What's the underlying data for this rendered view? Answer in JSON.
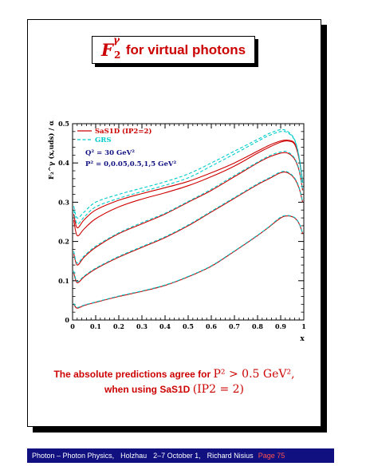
{
  "title": {
    "symbol": "F",
    "superscript": "γ",
    "subscript": "2",
    "text": "for virtual photons"
  },
  "chart_data": {
    "type": "line",
    "ylabel": "F₂^γ (x,uds) / α",
    "xlabel": "x",
    "xlim": [
      0,
      1
    ],
    "ylim": [
      0,
      0.5
    ],
    "x_ticks": [
      "0",
      "0.1",
      "0.2",
      "0.3",
      "0.4",
      "0.5",
      "0.6",
      "0.7",
      "0.8",
      "0.9",
      "1"
    ],
    "y_ticks": [
      "0",
      "0.1",
      "0.2",
      "0.3",
      "0.4",
      "0.5"
    ],
    "legend": {
      "position": "top-left",
      "entries": [
        {
          "label": "SaS1D (IP2=2)",
          "color": "#cc0000",
          "style": "solid"
        },
        {
          "label": "GRS",
          "color": "#00cccc",
          "style": "dashed"
        }
      ],
      "notes": [
        "Q² = 30 GeV²",
        "P² = 0,0.05,0.5,1,5 GeV²"
      ]
    },
    "x": [
      0.005,
      0.02,
      0.05,
      0.1,
      0.2,
      0.3,
      0.4,
      0.5,
      0.6,
      0.7,
      0.8,
      0.85,
      0.9,
      0.93,
      0.96,
      0.98,
      0.995
    ],
    "series": [
      {
        "name": "SaS1D (IP2=2)",
        "values": [
          0.27,
          0.235,
          0.255,
          0.28,
          0.305,
          0.322,
          0.337,
          0.353,
          0.375,
          0.4,
          0.43,
          0.445,
          0.456,
          0.458,
          0.45,
          0.41,
          0.35
        ]
      },
      {
        "name": "SaS1D (IP2=2)",
        "values": [
          0.255,
          0.215,
          0.232,
          0.258,
          0.288,
          0.308,
          0.324,
          0.342,
          0.365,
          0.392,
          0.425,
          0.44,
          0.453,
          0.456,
          0.448,
          0.41,
          0.35
        ]
      },
      {
        "name": "SaS1D (IP2=2)",
        "values": [
          0.17,
          0.14,
          0.16,
          0.185,
          0.22,
          0.245,
          0.27,
          0.3,
          0.33,
          0.365,
          0.4,
          0.415,
          0.425,
          0.425,
          0.41,
          0.38,
          0.33
        ]
      },
      {
        "name": "SaS1D (IP2=2)",
        "values": [
          0.12,
          0.095,
          0.11,
          0.13,
          0.16,
          0.185,
          0.21,
          0.24,
          0.275,
          0.31,
          0.345,
          0.36,
          0.375,
          0.375,
          0.36,
          0.335,
          0.3
        ]
      },
      {
        "name": "SaS1D (IP2=2)",
        "values": [
          0.04,
          0.03,
          0.037,
          0.045,
          0.06,
          0.073,
          0.088,
          0.11,
          0.137,
          0.175,
          0.215,
          0.237,
          0.26,
          0.265,
          0.26,
          0.245,
          0.22
        ]
      },
      {
        "name": "GRS",
        "values": [
          0.29,
          0.26,
          0.275,
          0.3,
          0.32,
          0.336,
          0.352,
          0.372,
          0.4,
          0.43,
          0.46,
          0.475,
          0.485,
          0.48,
          0.46,
          0.415,
          0.35
        ]
      },
      {
        "name": "GRS",
        "values": [
          0.28,
          0.245,
          0.262,
          0.288,
          0.31,
          0.327,
          0.343,
          0.362,
          0.392,
          0.423,
          0.455,
          0.47,
          0.48,
          0.477,
          0.458,
          0.413,
          0.35
        ]
      },
      {
        "name": "GRS",
        "values": [
          0.175,
          0.145,
          0.163,
          0.188,
          0.222,
          0.248,
          0.272,
          0.302,
          0.333,
          0.368,
          0.402,
          0.418,
          0.428,
          0.428,
          0.412,
          0.382,
          0.33
        ]
      },
      {
        "name": "GRS",
        "values": [
          0.125,
          0.098,
          0.112,
          0.132,
          0.162,
          0.187,
          0.212,
          0.242,
          0.277,
          0.312,
          0.347,
          0.362,
          0.377,
          0.377,
          0.362,
          0.337,
          0.3
        ]
      },
      {
        "name": "GRS",
        "values": [
          0.042,
          0.032,
          0.038,
          0.046,
          0.061,
          0.074,
          0.089,
          0.111,
          0.138,
          0.176,
          0.216,
          0.238,
          0.262,
          0.266,
          0.261,
          0.246,
          0.22
        ]
      }
    ]
  },
  "caption": {
    "line1_text": "The absolute predictions agree for",
    "line1_math": "P² > 0.5 GeV²,",
    "line2_text": "when using SaS1D",
    "line2_math": "(IP2 = 2)"
  },
  "footer": {
    "topic": "Photon – Photon Physics,",
    "location": "Holzhau",
    "dates": "2–7 October 1,",
    "author": "Richard Nisius",
    "page": "Page 75"
  }
}
